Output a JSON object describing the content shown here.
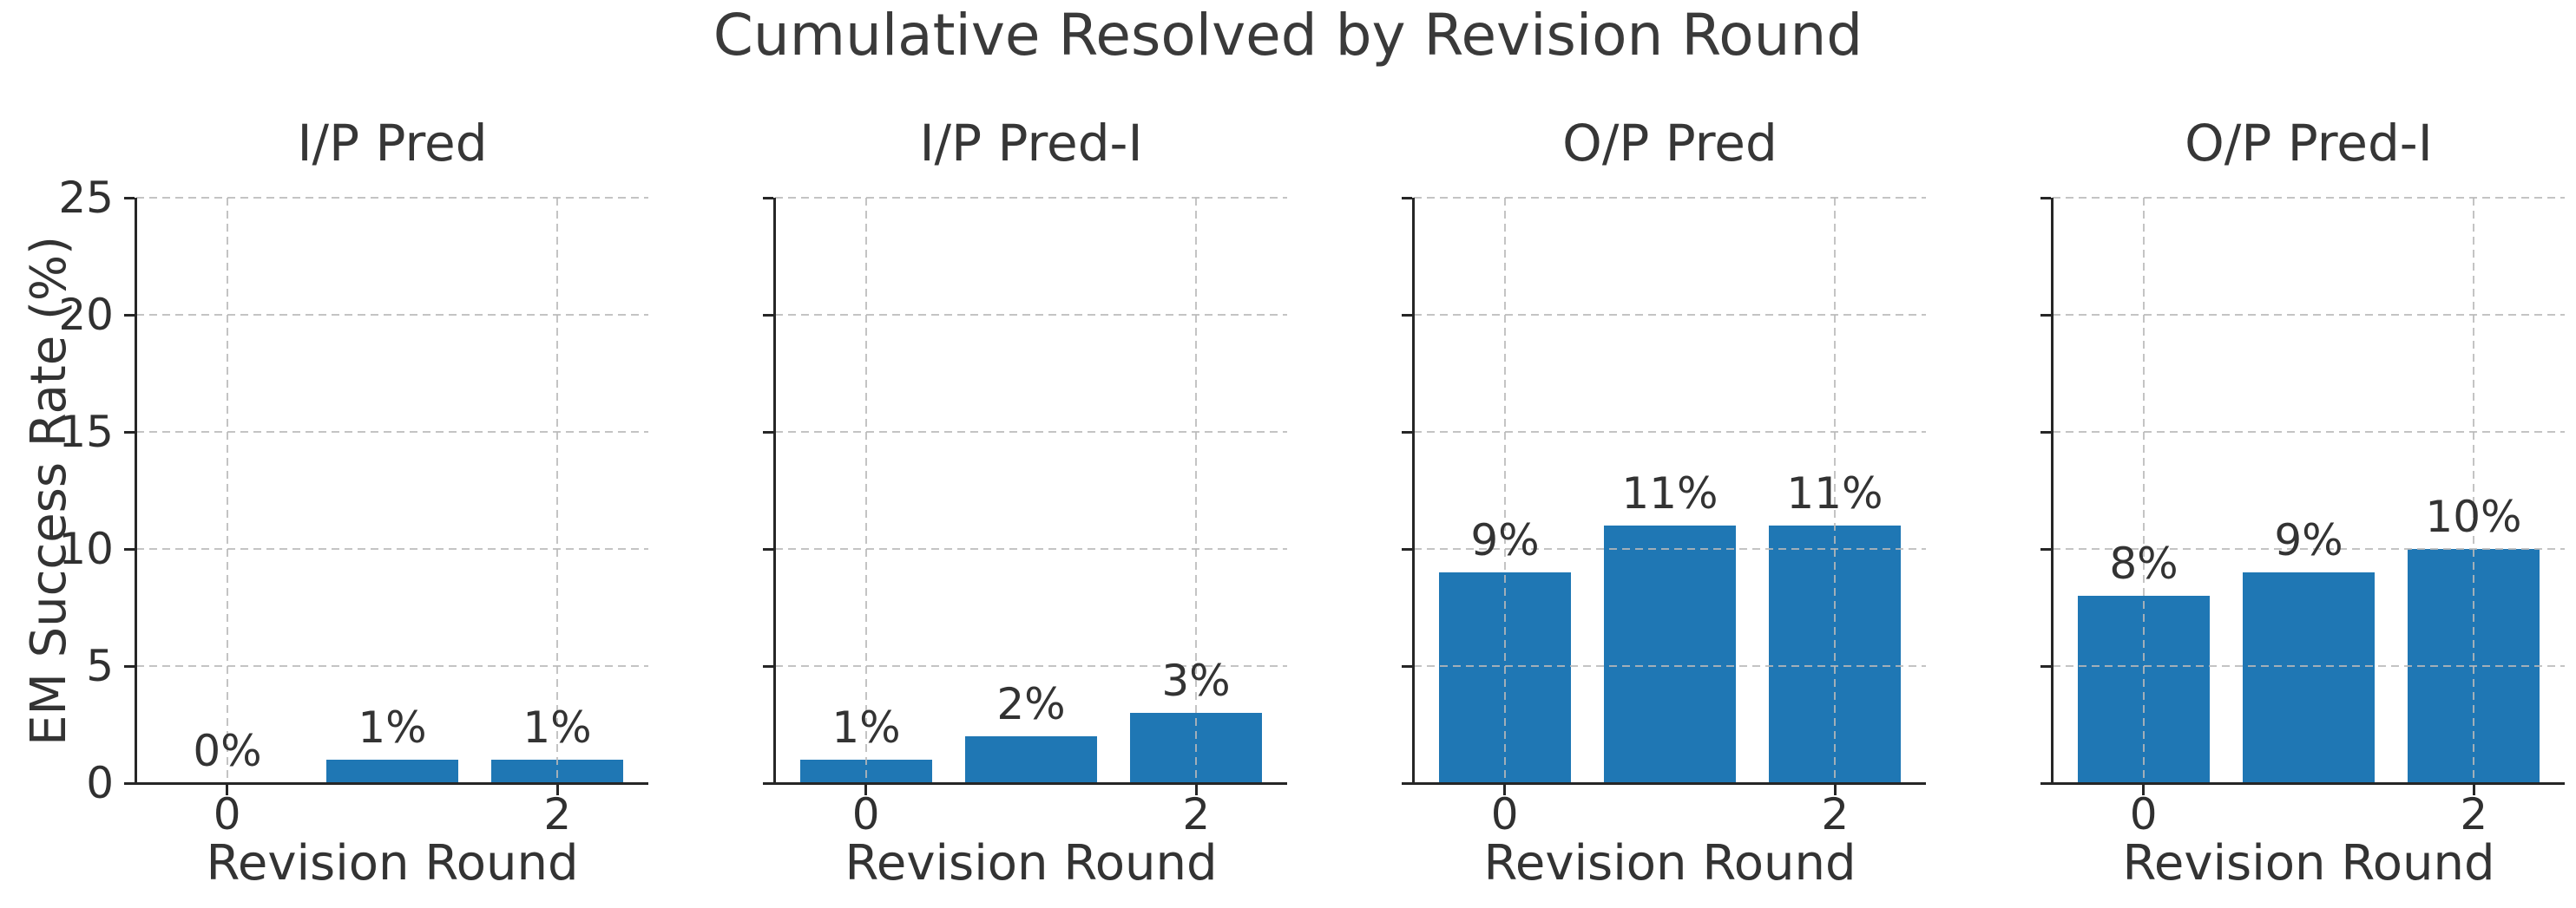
{
  "chart_data": {
    "type": "bar",
    "title": "Cumulative Resolved by Revision Round",
    "xlabel": "Revision Round",
    "ylabel": "EM Success Rate (%)",
    "ylim": [
      0,
      25
    ],
    "yticks": [
      0,
      5,
      10,
      15,
      20,
      25
    ],
    "x": [
      0,
      1,
      2
    ],
    "xtick_labels": [
      {
        "pos": 0,
        "label": "0"
      },
      {
        "pos": 2,
        "label": "2"
      }
    ],
    "grid": "dashed-both-axes-above-bars",
    "legend": "none",
    "subplots": [
      {
        "title": "I/P Pred",
        "values": [
          0,
          1,
          1
        ],
        "bar_labels": [
          "0%",
          "1%",
          "1%"
        ]
      },
      {
        "title": "I/P Pred-I",
        "values": [
          1,
          2,
          3
        ],
        "bar_labels": [
          "1%",
          "2%",
          "3%"
        ]
      },
      {
        "title": "O/P Pred",
        "values": [
          9,
          11,
          11
        ],
        "bar_labels": [
          "9%",
          "11%",
          "11%"
        ]
      },
      {
        "title": "O/P Pred-I",
        "values": [
          8,
          9,
          10
        ],
        "bar_labels": [
          "8%",
          "9%",
          "10%"
        ]
      }
    ]
  },
  "style": {
    "bar_color": "#1f77b4",
    "grid_color": "#b9b9b9",
    "spine_color": "#262626",
    "text_color": "#333333",
    "background": "#ffffff"
  }
}
